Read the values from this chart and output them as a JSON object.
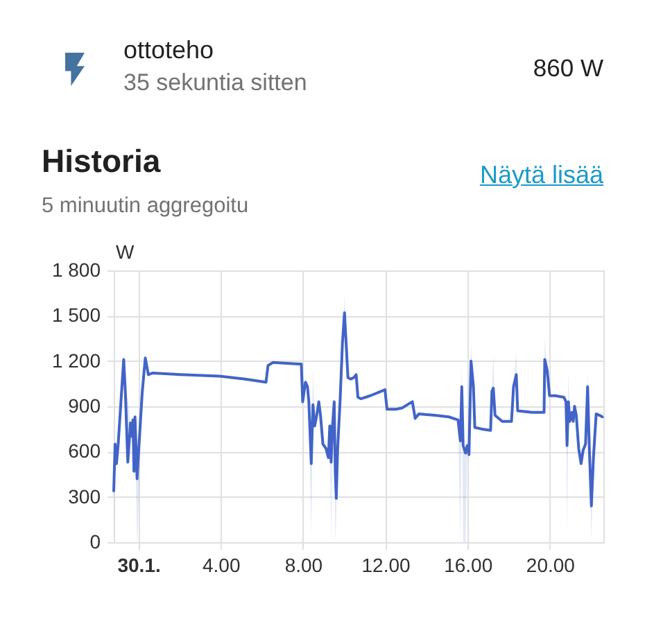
{
  "chart_data": {
    "type": "line",
    "title": "Historia",
    "subtitle": "5 minuutin aggregoitu",
    "ylabel": "W",
    "annotations": [
      "ottoteho",
      "35 sekuntia sitten",
      "860 W",
      "Näytä lisää"
    ],
    "x": [
      "--01-29T22:48",
      "--01-29T22:52",
      "--01-29T22:56",
      "--01-29T23:01",
      "--01-29T23:17",
      "--01-29T23:22",
      "--01-29T23:29",
      "--01-29T23:37",
      "--01-29T23:41",
      "--01-29T23:44",
      "--01-29T23:47",
      "--01-29T23:50",
      "--01-29T23:56",
      "--01-29T23:57",
      "--01-30T00:11",
      "--01-30T00:20",
      "--01-30T00:29",
      "--01-30T00:41",
      "--01-30T02:02",
      "--01-30T03:56",
      "--01-30T05:11",
      "--01-30T06:12",
      "--01-30T06:18",
      "--01-30T06:32",
      "--01-30T07:46",
      "--01-30T07:55",
      "--01-30T07:59",
      "--01-30T08:07",
      "--01-30T08:13",
      "--01-30T08:17",
      "--01-30T08:24",
      "--01-30T08:29",
      "--01-30T08:34",
      "--01-30T08:40",
      "--01-30T08:46",
      "--01-30T08:51",
      "--01-30T08:58",
      "--01-30T09:07",
      "--01-30T09:14",
      "--01-30T09:18",
      "--01-30T09:22",
      "--01-30T09:26",
      "--01-30T09:31",
      "--01-30T09:34",
      "--01-30T09:37",
      "--01-30T09:41",
      "--01-30T09:48",
      "--01-30T09:55",
      "--01-30T10:01",
      "--01-30T10:05",
      "--01-30T10:11",
      "--01-30T10:19",
      "--01-30T10:28",
      "--01-30T10:35",
      "--01-30T10:40",
      "--01-30T10:49",
      "--01-30T11:16",
      "--01-30T11:59",
      "--01-30T12:05",
      "--01-30T12:30",
      "--01-30T12:50",
      "--01-30T13:11",
      "--01-30T13:19",
      "--01-30T13:27",
      "--01-30T13:38",
      "--01-30T14:25",
      "--01-30T15:05",
      "--01-30T15:32",
      "--01-30T15:39",
      "--01-30T15:43",
      "--01-30T15:47",
      "--01-30T15:54",
      "--01-30T15:59",
      "--01-30T16:04",
      "--01-30T16:10",
      "--01-30T16:17",
      "--01-30T16:21",
      "--01-30T16:40",
      "--01-30T17:07",
      "--01-30T17:11",
      "--01-30T17:15",
      "--01-30T17:20",
      "--01-30T17:41",
      "--01-30T18:08",
      "--01-30T18:14",
      "--01-30T18:22",
      "--01-30T18:26",
      "--01-30T19:08",
      "--01-30T19:43",
      "--01-30T19:45",
      "--01-30T19:52",
      "--01-30T19:59",
      "--01-30T20:16",
      "--01-30T20:41",
      "--01-30T20:47",
      "--01-30T20:50",
      "--01-30T20:54",
      "--01-30T20:58",
      "--01-30T21:04",
      "--01-30T21:08",
      "--01-30T21:12",
      "--01-30T21:17",
      "--01-30T21:24",
      "--01-30T21:31",
      "--01-30T21:37",
      "--01-30T21:44",
      "--01-30T21:50",
      "--01-30T21:55",
      "--01-30T22:01",
      "--01-30T22:07",
      "--01-30T22:15",
      "--01-30T22:25",
      "--01-30T22:33"
    ],
    "xlim": [
      "--01-29T22:48",
      "--01-30T22:36"
    ],
    "xticks": [
      {
        "value": "--01-30T00:00",
        "label": "30.1."
      },
      {
        "value": "--01-30T04:00",
        "label": "4.00"
      },
      {
        "value": "--01-30T08:00",
        "label": "8.00"
      },
      {
        "value": "--01-30T12:00",
        "label": "12.00"
      },
      {
        "value": "--01-30T16:00",
        "label": "16.00"
      },
      {
        "value": "--01-30T20:00",
        "label": "20.00"
      }
    ],
    "ylim": [
      0,
      1800
    ],
    "yticks": [
      0,
      300,
      600,
      900,
      {
        "value": 1200,
        "label": "1 200"
      },
      {
        "value": 1500,
        "label": "1 500"
      },
      {
        "value": 1800,
        "label": "1 800"
      }
    ],
    "grid": true,
    "series": [
      {
        "color": "#4264c8",
        "values": [
          340,
          650,
          520,
          650,
          1210,
          990,
          530,
          790,
          700,
          810,
          470,
          830,
          420,
          470,
          990,
          1220,
          1110,
          1120,
          1110,
          1100,
          1080,
          1060,
          1170,
          1190,
          1180,
          1180,
          930,
          1060,
          1030,
          930,
          520,
          910,
          770,
          840,
          930,
          840,
          650,
          620,
          560,
          770,
          530,
          770,
          930,
          470,
          290,
          620,
          930,
          1320,
          1520,
          1350,
          1090,
          1080,
          1090,
          1110,
          960,
          950,
          970,
          1010,
          880,
          880,
          890,
          920,
          930,
          820,
          850,
          840,
          830,
          810,
          670,
          1030,
          640,
          590,
          640,
          580,
          1200,
          1030,
          760,
          750,
          740,
          1000,
          1020,
          840,
          800,
          800,
          1030,
          1110,
          870,
          860,
          860,
          1210,
          1140,
          970,
          970,
          960,
          930,
          640,
          930,
          800,
          860,
          800,
          900,
          840,
          620,
          520,
          610,
          650,
          1030,
          620,
          240,
          560,
          850,
          840,
          830
        ],
        "lower": [
          0,
          650,
          520,
          650,
          1210,
          990,
          530,
          790,
          700,
          810,
          470,
          830,
          0,
          0,
          990,
          1220,
          1110,
          1120,
          1110,
          1100,
          1080,
          1060,
          1170,
          1190,
          1180,
          1180,
          930,
          1060,
          1030,
          930,
          40,
          910,
          770,
          840,
          930,
          840,
          650,
          620,
          560,
          770,
          0,
          770,
          930,
          0,
          170,
          620,
          930,
          1320,
          1520,
          1350,
          1090,
          1080,
          1090,
          1110,
          960,
          950,
          970,
          1010,
          880,
          880,
          890,
          920,
          930,
          820,
          850,
          840,
          830,
          810,
          0,
          1030,
          0,
          0,
          640,
          580,
          1200,
          1030,
          760,
          750,
          740,
          1000,
          1020,
          840,
          800,
          800,
          1030,
          1110,
          870,
          860,
          860,
          1210,
          1140,
          970,
          970,
          960,
          930,
          40,
          930,
          800,
          860,
          800,
          900,
          840,
          620,
          520,
          610,
          650,
          1030,
          620,
          10,
          560,
          850,
          840,
          830
        ],
        "upper": [
          340,
          650,
          520,
          650,
          1210,
          990,
          950,
          790,
          700,
          810,
          470,
          830,
          420,
          470,
          990,
          1220,
          1110,
          1120,
          1110,
          1100,
          1080,
          1060,
          1170,
          1190,
          1180,
          1180,
          930,
          1060,
          1030,
          930,
          520,
          1140,
          770,
          840,
          930,
          840,
          650,
          620,
          560,
          770,
          530,
          770,
          930,
          470,
          290,
          620,
          930,
          1320,
          1640,
          1350,
          1090,
          1080,
          1090,
          1110,
          960,
          950,
          970,
          1010,
          880,
          880,
          890,
          920,
          930,
          820,
          850,
          840,
          830,
          810,
          670,
          1170,
          640,
          590,
          640,
          580,
          1310,
          1030,
          760,
          750,
          740,
          1000,
          1250,
          840,
          800,
          800,
          1030,
          1260,
          870,
          860,
          860,
          1350,
          1140,
          970,
          970,
          960,
          930,
          640,
          1130,
          800,
          860,
          800,
          900,
          840,
          620,
          520,
          610,
          650,
          1130,
          620,
          240,
          560,
          850,
          840,
          830
        ]
      }
    ]
  }
}
